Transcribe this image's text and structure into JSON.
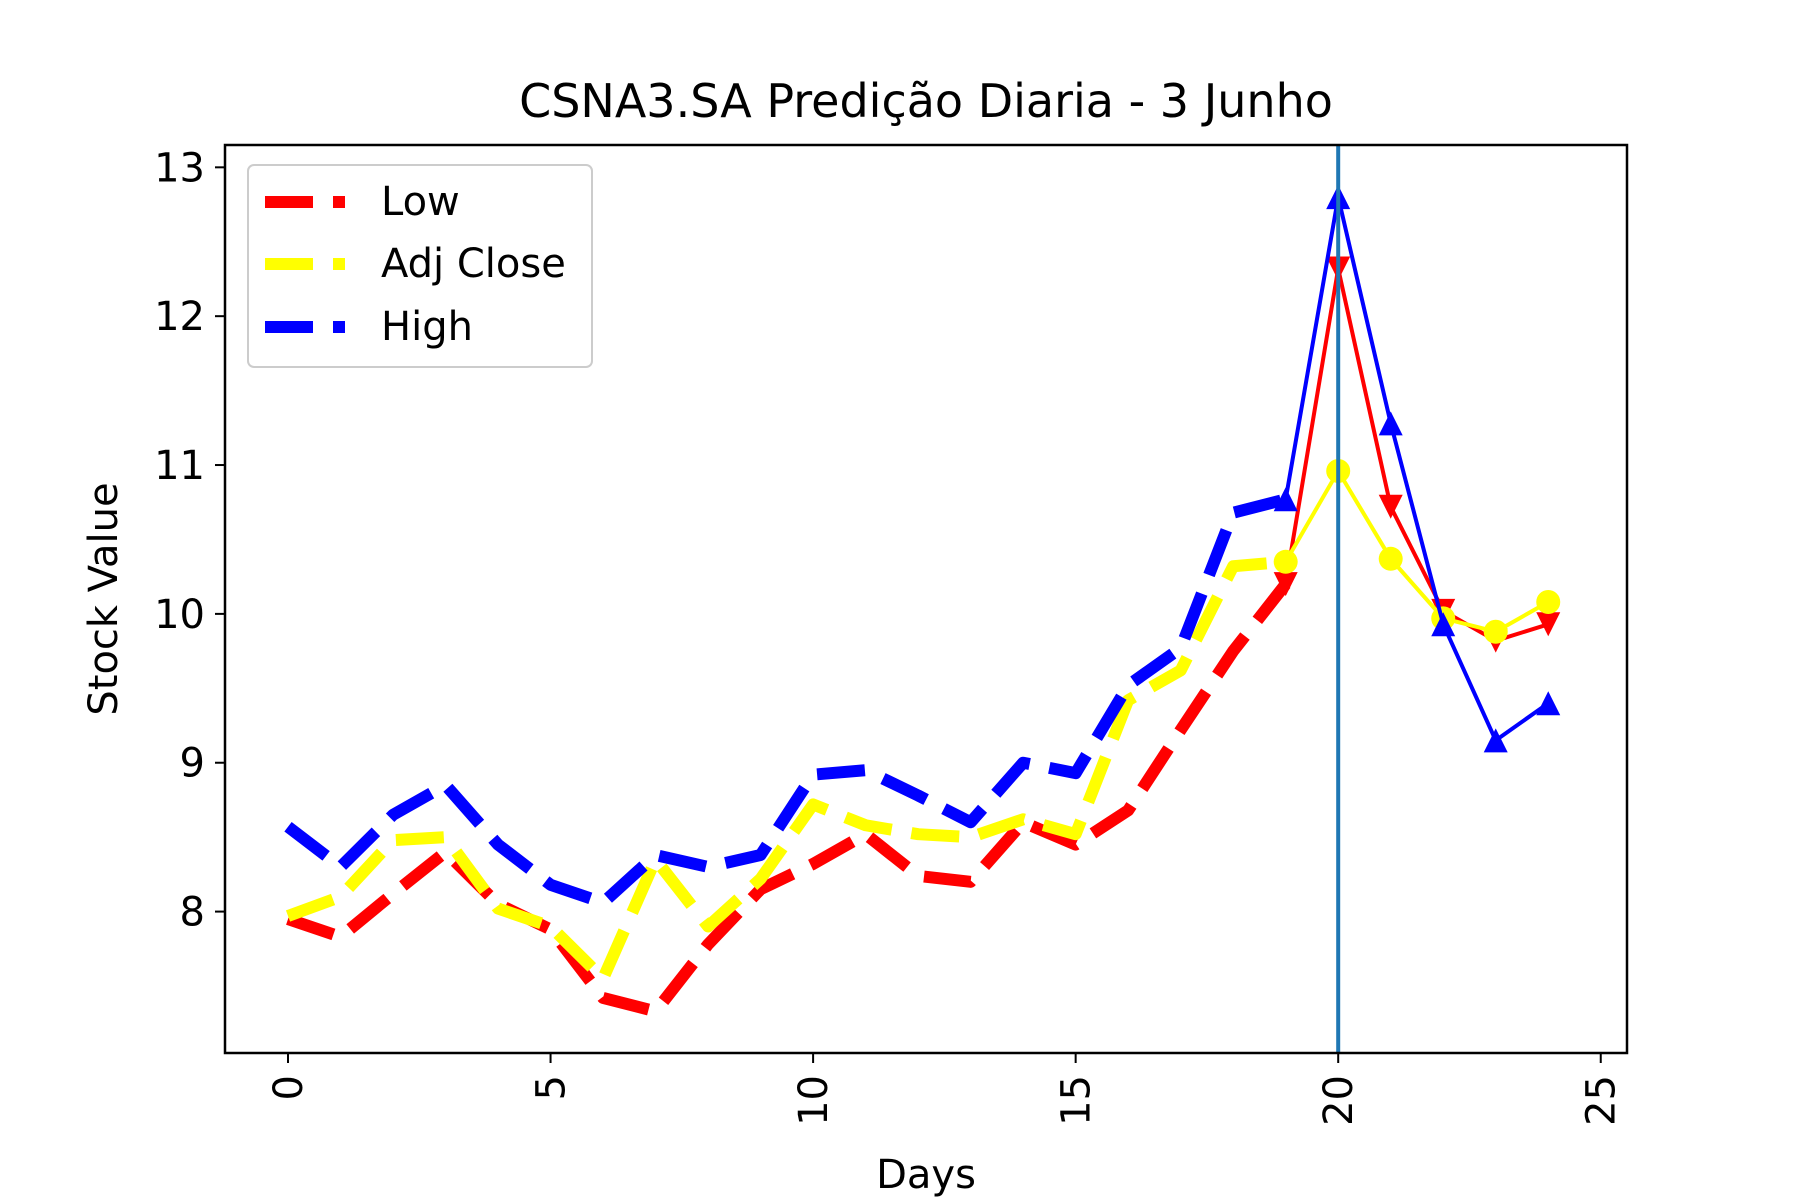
{
  "chart_data": {
    "type": "line",
    "title": "CSNA3.SA Predição Diaria - 3 Junho",
    "xlabel": "Days",
    "ylabel": "Stock Value",
    "xlim": [
      -1.2,
      25.5
    ],
    "ylim": [
      7.05,
      13.15
    ],
    "xticks": [
      "0",
      "5",
      "10",
      "15",
      "20",
      "25"
    ],
    "yticks": [
      "8",
      "9",
      "10",
      "11",
      "12",
      "13"
    ],
    "grid": false,
    "legend_position": "upper-left",
    "vline_x": 20,
    "vline_color": "#1f77b4",
    "series": [
      {
        "name": "Low",
        "color": "#ff0000",
        "marker": "triangle-down",
        "history_x": [
          0,
          1,
          2,
          3,
          4,
          5,
          6,
          7,
          8,
          9,
          10,
          11,
          12,
          13,
          14,
          15,
          16,
          17,
          18,
          19
        ],
        "history_y": [
          7.95,
          7.83,
          8.12,
          8.4,
          8.05,
          7.88,
          7.42,
          7.33,
          7.78,
          8.15,
          8.32,
          8.52,
          8.24,
          8.2,
          8.6,
          8.45,
          8.68,
          9.22,
          9.75,
          10.2
        ],
        "forecast_x": [
          19,
          20,
          21,
          22,
          23,
          24
        ],
        "forecast_y": [
          10.2,
          12.32,
          10.72,
          10.02,
          9.82,
          9.93
        ]
      },
      {
        "name": "Adj Close",
        "color": "#ffff00",
        "marker": "circle",
        "history_x": [
          0,
          1,
          2,
          3,
          4,
          5,
          6,
          7,
          8,
          9,
          10,
          11,
          12,
          13,
          14,
          15,
          16,
          17,
          18,
          19
        ],
        "history_y": [
          7.97,
          8.1,
          8.48,
          8.5,
          8.02,
          7.9,
          7.55,
          8.35,
          7.9,
          8.22,
          8.72,
          8.58,
          8.52,
          8.5,
          8.62,
          8.52,
          9.42,
          9.62,
          10.32,
          10.35
        ],
        "forecast_x": [
          19,
          20,
          21,
          22,
          23,
          24
        ],
        "forecast_y": [
          10.35,
          10.96,
          10.37,
          9.97,
          9.88,
          10.08
        ]
      },
      {
        "name": "High",
        "color": "#0000ff",
        "marker": "triangle-up",
        "history_x": [
          0,
          1,
          2,
          3,
          4,
          5,
          6,
          7,
          8,
          9,
          10,
          11,
          12,
          13,
          14,
          15,
          16,
          17,
          18,
          19
        ],
        "history_y": [
          8.57,
          8.3,
          8.65,
          8.85,
          8.45,
          8.18,
          8.06,
          8.38,
          8.3,
          8.38,
          8.92,
          8.95,
          8.78,
          8.6,
          9.0,
          8.93,
          9.52,
          9.77,
          10.68,
          10.77
        ],
        "forecast_x": [
          19,
          20,
          21,
          22,
          23,
          24
        ],
        "forecast_y": [
          10.77,
          12.8,
          11.28,
          9.93,
          9.15,
          9.4
        ]
      }
    ]
  }
}
